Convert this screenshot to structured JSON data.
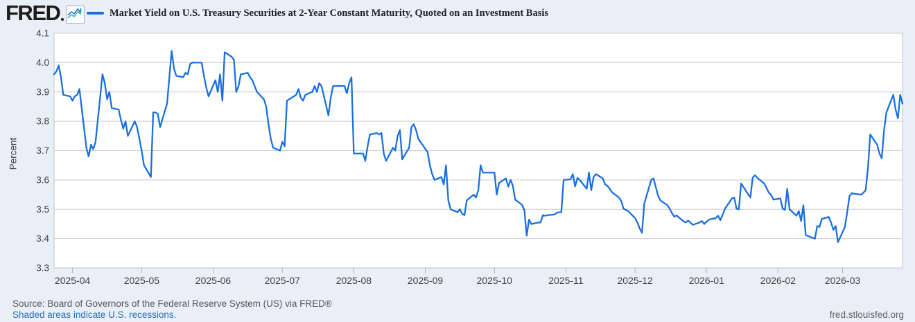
{
  "header": {
    "logo_text": "FRED",
    "series_title": "Market Yield on U.S. Treasury Securities at 2-Year Constant Maturity, Quoted on an Investment Basis"
  },
  "colors": {
    "line": "#1a6fdf",
    "background": "#e9eff7",
    "plot_background": "#ffffff",
    "gridline": "#cccccc",
    "frame": "#c2c2c2",
    "tick": "#a9b4c0",
    "tick_text": "#404040",
    "link": "#2c6cb5",
    "logo_icon_blue": "#2d77d2",
    "logo_icon_teal": "#47b4ac"
  },
  "y_axis": {
    "title": "Percent",
    "tick_labels": [
      "4.1",
      "4.0",
      "3.9",
      "3.8",
      "3.7",
      "3.6",
      "3.5",
      "3.4",
      "3.3"
    ]
  },
  "x_axis": {
    "tick_labels": [
      "2025-04",
      "2025-05",
      "2025-06",
      "2025-07",
      "2025-08",
      "2025-09",
      "2025-10",
      "2025-11",
      "2025-12",
      "2026-01",
      "2026-02",
      "2026-03"
    ]
  },
  "footer": {
    "source": "Source: Board of Governors of the Federal Reserve System (US) via FRED®",
    "note": "Shaded areas indicate U.S. recessions.",
    "site": "fred.stlouisfed.org"
  },
  "chart_data": {
    "type": "line",
    "title": "Market Yield on U.S. Treasury Securities at 2-Year Constant Maturity, Quoted on an Investment Basis",
    "ylabel": "Percent",
    "ylim": [
      3.3,
      4.1
    ],
    "x_range": [
      "2025-03-24",
      "2026-03-27"
    ],
    "grid": "horizontal",
    "legend_position": "top",
    "points": [
      [
        "2025-03-24",
        3.96
      ],
      [
        "2025-03-25",
        3.97
      ],
      [
        "2025-03-26",
        3.99
      ],
      [
        "2025-03-27",
        3.95
      ],
      [
        "2025-03-28",
        3.89
      ],
      [
        "2025-03-31",
        3.885
      ],
      [
        "2025-04-01",
        3.87
      ],
      [
        "2025-04-02",
        3.885
      ],
      [
        "2025-04-03",
        3.89
      ],
      [
        "2025-04-04",
        3.91
      ],
      [
        "2025-04-07",
        3.71
      ],
      [
        "2025-04-08",
        3.68
      ],
      [
        "2025-04-09",
        3.72
      ],
      [
        "2025-04-10",
        3.705
      ],
      [
        "2025-04-11",
        3.73
      ],
      [
        "2025-04-14",
        3.96
      ],
      [
        "2025-04-15",
        3.93
      ],
      [
        "2025-04-16",
        3.875
      ],
      [
        "2025-04-17",
        3.9
      ],
      [
        "2025-04-18",
        3.845
      ],
      [
        "2025-04-21",
        3.84
      ],
      [
        "2025-04-22",
        3.805
      ],
      [
        "2025-04-23",
        3.775
      ],
      [
        "2025-04-24",
        3.8
      ],
      [
        "2025-04-25",
        3.75
      ],
      [
        "2025-04-28",
        3.8
      ],
      [
        "2025-04-29",
        3.78
      ],
      [
        "2025-04-30",
        3.74
      ],
      [
        "2025-05-01",
        3.7
      ],
      [
        "2025-05-02",
        3.65
      ],
      [
        "2025-05-05",
        3.61
      ],
      [
        "2025-05-06",
        3.83
      ],
      [
        "2025-05-07",
        3.83
      ],
      [
        "2025-05-08",
        3.825
      ],
      [
        "2025-05-09",
        3.78
      ],
      [
        "2025-05-12",
        3.86
      ],
      [
        "2025-05-13",
        3.95
      ],
      [
        "2025-05-14",
        4.04
      ],
      [
        "2025-05-15",
        3.98
      ],
      [
        "2025-05-16",
        3.955
      ],
      [
        "2025-05-19",
        3.95
      ],
      [
        "2025-05-20",
        3.965
      ],
      [
        "2025-05-21",
        3.96
      ],
      [
        "2025-05-22",
        3.995
      ],
      [
        "2025-05-23",
        4.0
      ],
      [
        "2025-05-27",
        4.0
      ],
      [
        "2025-05-28",
        3.955
      ],
      [
        "2025-05-29",
        3.915
      ],
      [
        "2025-05-30",
        3.885
      ],
      [
        "2025-06-02",
        3.94
      ],
      [
        "2025-06-03",
        3.9
      ],
      [
        "2025-06-04",
        3.96
      ],
      [
        "2025-06-05",
        3.87
      ],
      [
        "2025-06-06",
        4.035
      ],
      [
        "2025-06-09",
        4.02
      ],
      [
        "2025-06-10",
        4.01
      ],
      [
        "2025-06-11",
        3.9
      ],
      [
        "2025-06-12",
        3.92
      ],
      [
        "2025-06-13",
        3.96
      ],
      [
        "2025-06-16",
        3.965
      ],
      [
        "2025-06-17",
        3.95
      ],
      [
        "2025-06-18",
        3.94
      ],
      [
        "2025-06-20",
        3.9
      ],
      [
        "2025-06-23",
        3.875
      ],
      [
        "2025-06-24",
        3.85
      ],
      [
        "2025-06-25",
        3.79
      ],
      [
        "2025-06-26",
        3.74
      ],
      [
        "2025-06-27",
        3.71
      ],
      [
        "2025-06-30",
        3.7
      ],
      [
        "2025-07-01",
        3.73
      ],
      [
        "2025-07-02",
        3.715
      ],
      [
        "2025-07-03",
        3.87
      ],
      [
        "2025-07-07",
        3.89
      ],
      [
        "2025-07-08",
        3.91
      ],
      [
        "2025-07-09",
        3.88
      ],
      [
        "2025-07-10",
        3.87
      ],
      [
        "2025-07-11",
        3.89
      ],
      [
        "2025-07-14",
        3.9
      ],
      [
        "2025-07-15",
        3.92
      ],
      [
        "2025-07-16",
        3.9
      ],
      [
        "2025-07-17",
        3.93
      ],
      [
        "2025-07-18",
        3.92
      ],
      [
        "2025-07-21",
        3.82
      ],
      [
        "2025-07-22",
        3.88
      ],
      [
        "2025-07-23",
        3.92
      ],
      [
        "2025-07-24",
        3.92
      ],
      [
        "2025-07-25",
        3.92
      ],
      [
        "2025-07-28",
        3.92
      ],
      [
        "2025-07-29",
        3.895
      ],
      [
        "2025-07-30",
        3.93
      ],
      [
        "2025-07-31",
        3.95
      ],
      [
        "2025-08-01",
        3.69
      ],
      [
        "2025-08-04",
        3.69
      ],
      [
        "2025-08-05",
        3.69
      ],
      [
        "2025-08-06",
        3.665
      ],
      [
        "2025-08-07",
        3.715
      ],
      [
        "2025-08-08",
        3.755
      ],
      [
        "2025-08-11",
        3.76
      ],
      [
        "2025-08-12",
        3.755
      ],
      [
        "2025-08-13",
        3.76
      ],
      [
        "2025-08-14",
        3.69
      ],
      [
        "2025-08-15",
        3.665
      ],
      [
        "2025-08-18",
        3.71
      ],
      [
        "2025-08-19",
        3.7
      ],
      [
        "2025-08-20",
        3.75
      ],
      [
        "2025-08-21",
        3.77
      ],
      [
        "2025-08-22",
        3.67
      ],
      [
        "2025-08-25",
        3.71
      ],
      [
        "2025-08-26",
        3.78
      ],
      [
        "2025-08-27",
        3.79
      ],
      [
        "2025-08-28",
        3.77
      ],
      [
        "2025-08-29",
        3.74
      ],
      [
        "2025-09-02",
        3.695
      ],
      [
        "2025-09-03",
        3.65
      ],
      [
        "2025-09-04",
        3.62
      ],
      [
        "2025-09-05",
        3.6
      ],
      [
        "2025-09-08",
        3.61
      ],
      [
        "2025-09-09",
        3.585
      ],
      [
        "2025-09-10",
        3.65
      ],
      [
        "2025-09-11",
        3.53
      ],
      [
        "2025-09-12",
        3.5
      ],
      [
        "2025-09-15",
        3.49
      ],
      [
        "2025-09-16",
        3.5
      ],
      [
        "2025-09-17",
        3.485
      ],
      [
        "2025-09-18",
        3.48
      ],
      [
        "2025-09-19",
        3.53
      ],
      [
        "2025-09-22",
        3.55
      ],
      [
        "2025-09-23",
        3.54
      ],
      [
        "2025-09-24",
        3.565
      ],
      [
        "2025-09-25",
        3.65
      ],
      [
        "2025-09-26",
        3.625
      ],
      [
        "2025-09-29",
        3.625
      ],
      [
        "2025-09-30",
        3.625
      ],
      [
        "2025-10-01",
        3.625
      ],
      [
        "2025-10-02",
        3.55
      ],
      [
        "2025-10-03",
        3.59
      ],
      [
        "2025-10-06",
        3.605
      ],
      [
        "2025-10-07",
        3.577
      ],
      [
        "2025-10-08",
        3.6
      ],
      [
        "2025-10-09",
        3.58
      ],
      [
        "2025-10-10",
        3.533
      ],
      [
        "2025-10-13",
        3.515
      ],
      [
        "2025-10-14",
        3.497
      ],
      [
        "2025-10-15",
        3.41
      ],
      [
        "2025-10-16",
        3.465
      ],
      [
        "2025-10-17",
        3.45
      ],
      [
        "2025-10-20",
        3.455
      ],
      [
        "2025-10-21",
        3.455
      ],
      [
        "2025-10-22",
        3.48
      ],
      [
        "2025-10-23",
        3.478
      ],
      [
        "2025-10-24",
        3.48
      ],
      [
        "2025-10-27",
        3.482
      ],
      [
        "2025-10-28",
        3.488
      ],
      [
        "2025-10-29",
        3.49
      ],
      [
        "2025-10-30",
        3.49
      ],
      [
        "2025-10-31",
        3.6
      ],
      [
        "2025-11-03",
        3.602
      ],
      [
        "2025-11-04",
        3.62
      ],
      [
        "2025-11-05",
        3.578
      ],
      [
        "2025-11-06",
        3.607
      ],
      [
        "2025-11-07",
        3.6
      ],
      [
        "2025-11-10",
        3.57
      ],
      [
        "2025-11-11",
        3.625
      ],
      [
        "2025-11-12",
        3.565
      ],
      [
        "2025-11-13",
        3.61
      ],
      [
        "2025-11-14",
        3.62
      ],
      [
        "2025-11-17",
        3.605
      ],
      [
        "2025-11-18",
        3.585
      ],
      [
        "2025-11-19",
        3.58
      ],
      [
        "2025-11-20",
        3.57
      ],
      [
        "2025-11-21",
        3.558
      ],
      [
        "2025-11-24",
        3.54
      ],
      [
        "2025-11-25",
        3.528
      ],
      [
        "2025-11-26",
        3.502
      ],
      [
        "2025-11-28",
        3.494
      ],
      [
        "2025-12-01",
        3.47
      ],
      [
        "2025-12-02",
        3.455
      ],
      [
        "2025-12-03",
        3.435
      ],
      [
        "2025-12-04",
        3.42
      ],
      [
        "2025-12-05",
        3.52
      ],
      [
        "2025-12-08",
        3.6
      ],
      [
        "2025-12-09",
        3.605
      ],
      [
        "2025-12-10",
        3.575
      ],
      [
        "2025-12-11",
        3.546
      ],
      [
        "2025-12-12",
        3.53
      ],
      [
        "2025-12-15",
        3.514
      ],
      [
        "2025-12-16",
        3.502
      ],
      [
        "2025-12-17",
        3.487
      ],
      [
        "2025-12-18",
        3.475
      ],
      [
        "2025-12-19",
        3.479
      ],
      [
        "2025-12-22",
        3.459
      ],
      [
        "2025-12-23",
        3.455
      ],
      [
        "2025-12-24",
        3.462
      ],
      [
        "2025-12-26",
        3.447
      ],
      [
        "2025-12-29",
        3.455
      ],
      [
        "2025-12-30",
        3.46
      ],
      [
        "2025-12-31",
        3.45
      ],
      [
        "2026-01-02",
        3.465
      ],
      [
        "2026-01-05",
        3.47
      ],
      [
        "2026-01-06",
        3.478
      ],
      [
        "2026-01-07",
        3.463
      ],
      [
        "2026-01-08",
        3.482
      ],
      [
        "2026-01-09",
        3.502
      ],
      [
        "2026-01-12",
        3.537
      ],
      [
        "2026-01-13",
        3.54
      ],
      [
        "2026-01-14",
        3.502
      ],
      [
        "2026-01-15",
        3.5
      ],
      [
        "2026-01-16",
        3.588
      ],
      [
        "2026-01-20",
        3.54
      ],
      [
        "2026-01-21",
        3.608
      ],
      [
        "2026-01-22",
        3.616
      ],
      [
        "2026-01-23",
        3.607
      ],
      [
        "2026-01-26",
        3.588
      ],
      [
        "2026-01-27",
        3.573
      ],
      [
        "2026-01-28",
        3.557
      ],
      [
        "2026-01-29",
        3.549
      ],
      [
        "2026-01-30",
        3.533
      ],
      [
        "2026-02-02",
        3.537
      ],
      [
        "2026-02-03",
        3.502
      ],
      [
        "2026-02-04",
        3.498
      ],
      [
        "2026-02-05",
        3.57
      ],
      [
        "2026-02-06",
        3.5
      ],
      [
        "2026-02-09",
        3.478
      ],
      [
        "2026-02-10",
        3.494
      ],
      [
        "2026-02-11",
        3.46
      ],
      [
        "2026-02-12",
        3.514
      ],
      [
        "2026-02-13",
        3.412
      ],
      [
        "2026-02-17",
        3.4
      ],
      [
        "2026-02-18",
        3.443
      ],
      [
        "2026-02-19",
        3.44
      ],
      [
        "2026-02-20",
        3.467
      ],
      [
        "2026-02-23",
        3.474
      ],
      [
        "2026-02-24",
        3.455
      ],
      [
        "2026-02-25",
        3.43
      ],
      [
        "2026-02-26",
        3.443
      ],
      [
        "2026-02-27",
        3.388
      ],
      [
        "2026-03-02",
        3.44
      ],
      [
        "2026-03-03",
        3.49
      ],
      [
        "2026-03-04",
        3.545
      ],
      [
        "2026-03-05",
        3.555
      ],
      [
        "2026-03-06",
        3.553
      ],
      [
        "2026-03-09",
        3.55
      ],
      [
        "2026-03-10",
        3.556
      ],
      [
        "2026-03-11",
        3.565
      ],
      [
        "2026-03-12",
        3.64
      ],
      [
        "2026-03-13",
        3.755
      ],
      [
        "2026-03-16",
        3.72
      ],
      [
        "2026-03-17",
        3.69
      ],
      [
        "2026-03-18",
        3.674
      ],
      [
        "2026-03-19",
        3.77
      ],
      [
        "2026-03-20",
        3.83
      ],
      [
        "2026-03-23",
        3.89
      ],
      [
        "2026-03-24",
        3.84
      ],
      [
        "2026-03-25",
        3.81
      ],
      [
        "2026-03-26",
        3.89
      ],
      [
        "2026-03-27",
        3.86
      ]
    ]
  }
}
